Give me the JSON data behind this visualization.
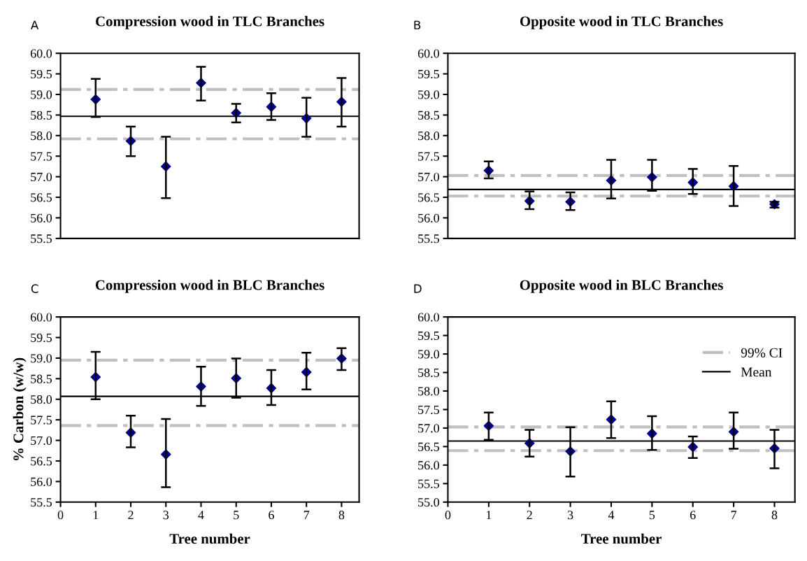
{
  "chart_data": [
    {
      "type": "scatter",
      "title": "Compression wood in TLC Branches",
      "annotations": [
        "A"
      ],
      "x": [
        1,
        2,
        3,
        4,
        5,
        6,
        7,
        8
      ],
      "tick_labels": "y",
      "xlim": [
        0,
        8.5
      ],
      "ylim": [
        55.5,
        60
      ],
      "yticks": [
        {
          "value": 55.5,
          "label": "55.5"
        },
        {
          "value": 56,
          "label": "56.0"
        },
        {
          "value": 56.5,
          "label": "56.5"
        },
        {
          "value": 57,
          "label": "57.0"
        },
        {
          "value": 57.5,
          "label": "57.5"
        },
        {
          "value": 58,
          "label": "58.0"
        },
        {
          "value": 58.5,
          "label": "58.5"
        },
        {
          "value": 59,
          "label": "59.0"
        },
        {
          "value": 59.5,
          "label": "59.5"
        },
        {
          "value": 60,
          "label": "60.0"
        }
      ],
      "marker": "diamond",
      "grid": false,
      "legend": false,
      "series": [
        {
          "color": "#00008b",
          "values": [
            58.88,
            57.87,
            57.25,
            59.28,
            58.55,
            58.7,
            58.42,
            58.82
          ],
          "errors": [
            [
              58.45,
              59.38
            ],
            [
              57.5,
              58.22
            ],
            [
              56.48,
              57.97
            ],
            [
              58.85,
              59.67
            ],
            [
              58.32,
              58.77
            ],
            [
              58.38,
              59.03
            ],
            [
              57.97,
              58.92
            ],
            [
              58.22,
              59.4
            ]
          ]
        }
      ],
      "ref_lines": [
        {
          "axis": "y",
          "value": 59.12,
          "color": "#c0c0c0",
          "line_style": "dashed"
        },
        {
          "axis": "y",
          "value": 57.92,
          "color": "#c0c0c0",
          "line_style": "dashed"
        },
        {
          "axis": "y",
          "value": 58.47,
          "color": "#000000",
          "line_style": "solid"
        }
      ]
    },
    {
      "type": "scatter",
      "title": "Opposite wood in TLC Branches",
      "annotations": [
        "B"
      ],
      "x": [
        1,
        2,
        3,
        4,
        5,
        6,
        7,
        8
      ],
      "tick_labels": "y",
      "xlim": [
        0,
        8.5
      ],
      "ylim": [
        55.5,
        60
      ],
      "yticks": [
        {
          "value": 55.5,
          "label": "55.5"
        },
        {
          "value": 56,
          "label": "56.0"
        },
        {
          "value": 56.5,
          "label": "56.5"
        },
        {
          "value": 57,
          "label": "57.0"
        },
        {
          "value": 57.5,
          "label": "57.5"
        },
        {
          "value": 58,
          "label": "58.0"
        },
        {
          "value": 58.5,
          "label": "58.5"
        },
        {
          "value": 59,
          "label": "59.0"
        },
        {
          "value": 59.5,
          "label": "59.5"
        },
        {
          "value": 60,
          "label": "60.0"
        }
      ],
      "marker": "diamond",
      "grid": false,
      "legend": false,
      "series": [
        {
          "color": "#00008b",
          "values": [
            57.15,
            56.41,
            56.39,
            56.91,
            56.99,
            56.86,
            56.77,
            56.33
          ],
          "errors": [
            [
              56.96,
              57.37
            ],
            [
              56.21,
              56.64
            ],
            [
              56.19,
              56.62
            ],
            [
              56.47,
              57.41
            ],
            [
              56.66,
              57.41
            ],
            [
              56.58,
              57.19
            ],
            [
              56.29,
              57.26
            ],
            [
              56.25,
              56.39
            ]
          ]
        }
      ],
      "ref_lines": [
        {
          "axis": "y",
          "value": 57.03,
          "color": "#c0c0c0",
          "line_style": "dashed"
        },
        {
          "axis": "y",
          "value": 56.53,
          "color": "#c0c0c0",
          "line_style": "dashed"
        },
        {
          "axis": "y",
          "value": 56.69,
          "color": "#000000",
          "line_style": "solid"
        }
      ]
    },
    {
      "type": "scatter",
      "title": "Compression wood in BLC Branches",
      "annotations": [
        "C"
      ],
      "xlabel": "Tree number",
      "ylabel": "% Carbon (w/w)",
      "x": [
        1,
        2,
        3,
        4,
        5,
        6,
        7,
        8
      ],
      "xlim": [
        0,
        8.5
      ],
      "xticks": [
        0,
        1,
        2,
        3,
        4,
        5,
        6,
        7,
        8
      ],
      "ylim": [
        55.5,
        60
      ],
      "yticks": [
        {
          "value": 55.5,
          "label": "55.5"
        },
        {
          "value": 56,
          "label": "56.0"
        },
        {
          "value": 56.5,
          "label": "56.5"
        },
        {
          "value": 57,
          "label": "57.0"
        },
        {
          "value": 57.5,
          "label": "57.5"
        },
        {
          "value": 58,
          "label": "58.0"
        },
        {
          "value": 58.5,
          "label": "58.5"
        },
        {
          "value": 59,
          "label": "59.0"
        },
        {
          "value": 59.5,
          "label": "59.5"
        },
        {
          "value": 60,
          "label": "60.0"
        }
      ],
      "marker": "diamond",
      "grid": false,
      "legend": false,
      "series": [
        {
          "color": "#00008b",
          "values": [
            58.54,
            57.19,
            56.66,
            58.31,
            58.51,
            58.27,
            58.66,
            58.99
          ],
          "errors": [
            [
              58.0,
              59.15
            ],
            [
              56.83,
              57.6
            ],
            [
              55.86,
              57.52
            ],
            [
              57.84,
              58.79
            ],
            [
              58.04,
              58.99
            ],
            [
              57.86,
              58.71
            ],
            [
              58.24,
              59.13
            ],
            [
              58.71,
              59.24
            ]
          ]
        }
      ],
      "ref_lines": [
        {
          "axis": "y",
          "value": 58.95,
          "color": "#c0c0c0",
          "line_style": "dashed"
        },
        {
          "axis": "y",
          "value": 57.36,
          "color": "#c0c0c0",
          "line_style": "dashed"
        },
        {
          "axis": "y",
          "value": 58.07,
          "color": "#000000",
          "line_style": "solid"
        }
      ]
    },
    {
      "type": "scatter",
      "title": "Opposite wood in BLC Branches",
      "annotations": [
        "D"
      ],
      "xlabel": "Tree number",
      "x": [
        1,
        2,
        3,
        4,
        5,
        6,
        7,
        8
      ],
      "xlim": [
        0,
        8.5
      ],
      "xticks": [
        0,
        1,
        2,
        3,
        4,
        5,
        6,
        7,
        8
      ],
      "ylim": [
        55,
        60
      ],
      "yticks": [
        {
          "value": 55,
          "label": "55.0"
        },
        {
          "value": 55.5,
          "label": "55.5"
        },
        {
          "value": 56,
          "label": "56.0"
        },
        {
          "value": 56.5,
          "label": "56.5"
        },
        {
          "value": 57,
          "label": "57.0"
        },
        {
          "value": 57.5,
          "label": "57.5"
        },
        {
          "value": 58,
          "label": "58.0"
        },
        {
          "value": 58.5,
          "label": "58.5"
        },
        {
          "value": 59,
          "label": "59.0"
        },
        {
          "value": 59.5,
          "label": "59.5"
        },
        {
          "value": 60,
          "label": "60.0"
        }
      ],
      "marker": "diamond",
      "grid": false,
      "legend": "top right",
      "series": [
        {
          "color": "#00008b",
          "values": [
            57.06,
            56.59,
            56.37,
            57.23,
            56.85,
            56.49,
            56.9,
            56.45
          ],
          "errors": [
            [
              56.68,
              57.42
            ],
            [
              56.23,
              56.95
            ],
            [
              55.69,
              57.02
            ],
            [
              56.73,
              57.72
            ],
            [
              56.41,
              57.32
            ],
            [
              56.19,
              56.77
            ],
            [
              56.44,
              57.42
            ],
            [
              55.91,
              56.95
            ]
          ]
        }
      ],
      "ref_lines": [
        {
          "axis": "y",
          "value": 57.03,
          "color": "#c0c0c0",
          "line_style": "dashed",
          "label": "99% CI"
        },
        {
          "axis": "y",
          "value": 56.39,
          "color": "#c0c0c0",
          "line_style": "dashed"
        },
        {
          "axis": "y",
          "value": 56.65,
          "color": "#000000",
          "line_style": "solid",
          "label": "Mean"
        }
      ]
    }
  ]
}
